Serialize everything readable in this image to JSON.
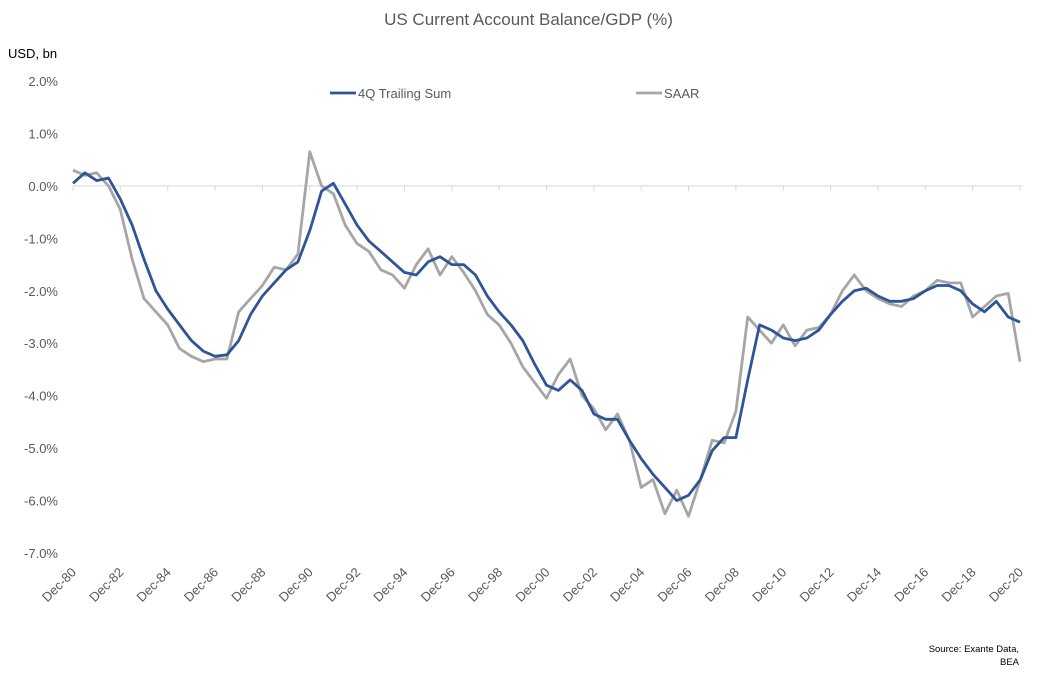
{
  "chart_data": {
    "type": "line",
    "title": "US Current Account Balance/GDP (%)",
    "ylabel": "USD, bn",
    "xlabel": "",
    "source": [
      "Source: Exante Data,",
      "BEA"
    ],
    "ylim": [
      -7.0,
      2.0
    ],
    "yticks": [
      "2.0%",
      "1.0%",
      "0.0%",
      "-1.0%",
      "-2.0%",
      "-3.0%",
      "-4.0%",
      "-5.0%",
      "-6.0%",
      "-7.0%"
    ],
    "xticks": [
      "Dec-80",
      "Dec-82",
      "Dec-84",
      "Dec-86",
      "Dec-88",
      "Dec-90",
      "Dec-92",
      "Dec-94",
      "Dec-96",
      "Dec-98",
      "Dec-00",
      "Dec-02",
      "Dec-04",
      "Dec-06",
      "Dec-08",
      "Dec-10",
      "Dec-12",
      "Dec-14",
      "Dec-16",
      "Dec-18",
      "Dec-20"
    ],
    "x": [
      "Dec-80",
      "Jun-81",
      "Dec-81",
      "Jun-82",
      "Dec-82",
      "Jun-83",
      "Dec-83",
      "Jun-84",
      "Dec-84",
      "Jun-85",
      "Dec-85",
      "Jun-86",
      "Dec-86",
      "Jun-87",
      "Dec-87",
      "Jun-88",
      "Dec-88",
      "Jun-89",
      "Dec-89",
      "Jun-90",
      "Dec-90",
      "Jun-91",
      "Dec-91",
      "Jun-92",
      "Dec-92",
      "Jun-93",
      "Dec-93",
      "Jun-94",
      "Dec-94",
      "Jun-95",
      "Dec-95",
      "Jun-96",
      "Dec-96",
      "Jun-97",
      "Dec-97",
      "Jun-98",
      "Dec-98",
      "Jun-99",
      "Dec-99",
      "Jun-00",
      "Dec-00",
      "Jun-01",
      "Dec-01",
      "Jun-02",
      "Dec-02",
      "Jun-03",
      "Dec-03",
      "Jun-04",
      "Dec-04",
      "Jun-05",
      "Dec-05",
      "Jun-06",
      "Dec-06",
      "Jun-07",
      "Dec-07",
      "Jun-08",
      "Dec-08",
      "Jun-09",
      "Dec-09",
      "Jun-10",
      "Dec-10",
      "Jun-11",
      "Dec-11",
      "Jun-12",
      "Dec-12",
      "Jun-13",
      "Dec-13",
      "Jun-14",
      "Dec-14",
      "Jun-15",
      "Dec-15",
      "Jun-16",
      "Dec-16",
      "Jun-17",
      "Dec-17",
      "Jun-18",
      "Dec-18",
      "Jun-19",
      "Dec-19",
      "Jun-20",
      "Dec-20"
    ],
    "legend_position": "top",
    "grid": false,
    "series": [
      {
        "name": "4Q Trailing Sum",
        "color": "#2F5597",
        "values": [
          0.05,
          0.25,
          0.1,
          0.15,
          -0.25,
          -0.75,
          -1.4,
          -2.0,
          -2.35,
          -2.65,
          -2.95,
          -3.15,
          -3.25,
          -3.22,
          -2.95,
          -2.45,
          -2.1,
          -1.85,
          -1.6,
          -1.45,
          -0.85,
          -0.1,
          0.05,
          -0.35,
          -0.75,
          -1.05,
          -1.25,
          -1.45,
          -1.65,
          -1.7,
          -1.45,
          -1.35,
          -1.5,
          -1.5,
          -1.7,
          -2.1,
          -2.4,
          -2.65,
          -2.95,
          -3.4,
          -3.8,
          -3.9,
          -3.7,
          -3.9,
          -4.35,
          -4.45,
          -4.45,
          -4.85,
          -5.2,
          -5.5,
          -5.75,
          -6.0,
          -5.9,
          -5.6,
          -5.05,
          -4.8,
          -4.8,
          -3.7,
          -2.65,
          -2.75,
          -2.9,
          -2.95,
          -2.9,
          -2.75,
          -2.45,
          -2.2,
          -2.0,
          -1.95,
          -2.1,
          -2.2,
          -2.2,
          -2.15,
          -2.0,
          -1.9,
          -1.9,
          -2.0,
          -2.25,
          -2.4,
          -2.2,
          -2.5,
          -2.6
        ]
      },
      {
        "name": "SAAR",
        "color": "#A6A6A6",
        "values": [
          0.3,
          0.2,
          0.25,
          0.0,
          -0.45,
          -1.4,
          -2.15,
          -2.4,
          -2.65,
          -3.1,
          -3.25,
          -3.35,
          -3.3,
          -3.3,
          -2.4,
          -2.15,
          -1.9,
          -1.55,
          -1.6,
          -1.3,
          0.65,
          0.0,
          -0.15,
          -0.75,
          -1.1,
          -1.25,
          -1.6,
          -1.7,
          -1.95,
          -1.5,
          -1.2,
          -1.7,
          -1.35,
          -1.65,
          -2.0,
          -2.45,
          -2.65,
          -3.0,
          -3.45,
          -3.75,
          -4.05,
          -3.6,
          -3.3,
          -4.0,
          -4.25,
          -4.65,
          -4.35,
          -4.85,
          -5.75,
          -5.6,
          -6.25,
          -5.8,
          -6.3,
          -5.6,
          -4.85,
          -4.9,
          -4.3,
          -2.5,
          -2.75,
          -3.0,
          -2.65,
          -3.05,
          -2.75,
          -2.7,
          -2.45,
          -2.0,
          -1.7,
          -2.0,
          -2.15,
          -2.25,
          -2.3,
          -2.1,
          -2.0,
          -1.8,
          -1.85,
          -1.85,
          -2.5,
          -2.3,
          -2.1,
          -2.05,
          -3.35
        ]
      }
    ]
  }
}
